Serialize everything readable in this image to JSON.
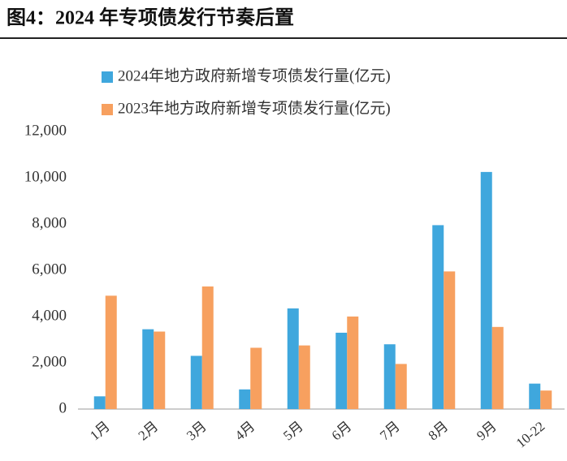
{
  "chart_data": {
    "type": "bar",
    "title": "图4：2024 年专项债发行节奏后置",
    "categories": [
      "1月",
      "2月",
      "3月",
      "4月",
      "5月",
      "6月",
      "7月",
      "8月",
      "9月",
      "10-22"
    ],
    "series": [
      {
        "name": "2024年地方政府新增专项债发行量(亿元)",
        "color": "#3fa7dd",
        "values": [
          550,
          3450,
          2300,
          850,
          4350,
          3300,
          2800,
          7950,
          10250,
          1100
        ]
      },
      {
        "name": "2023年地方政府新增专项债发行量(亿元)",
        "color": "#f7a05f",
        "values": [
          4900,
          3350,
          5300,
          2650,
          2750,
          4000,
          1950,
          5950,
          3550,
          800
        ]
      }
    ],
    "ylim": [
      0,
      12000
    ],
    "yticks": [
      0,
      {
        "value": 2000,
        "label": "2,000"
      },
      {
        "value": 4000,
        "label": "4,000"
      },
      {
        "value": 6000,
        "label": "6,000"
      },
      {
        "value": 8000,
        "label": "8,000"
      },
      {
        "value": 10000,
        "label": "10,000"
      },
      {
        "value": 12000,
        "label": "12,000"
      }
    ],
    "grid": false,
    "legend": "top-left"
  }
}
